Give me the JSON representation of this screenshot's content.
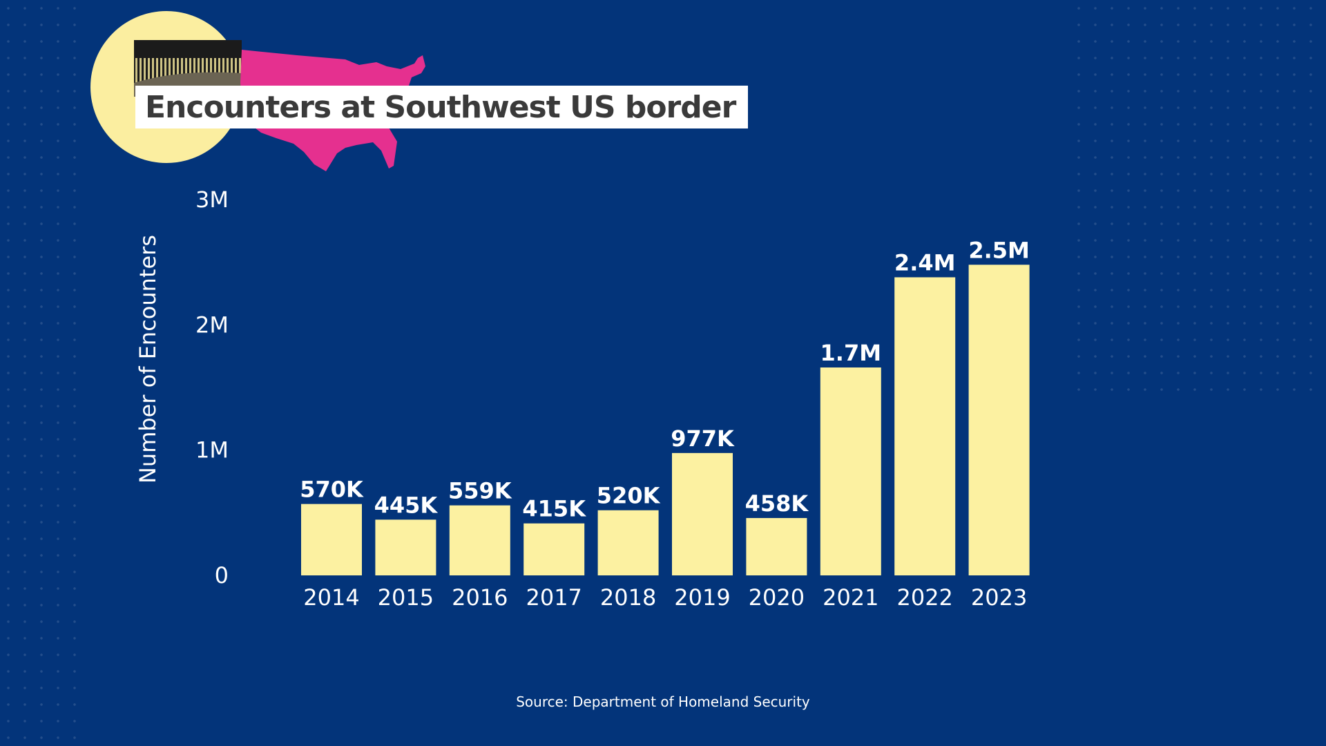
{
  "colors": {
    "background": "#03347a",
    "bar": "#fcf1a1",
    "map": "#e5308f",
    "circle": "#fbeea0",
    "title_box": "#ffffff"
  },
  "chart_data": {
    "type": "bar",
    "title": "Encounters at Southwest US border",
    "xlabel": "",
    "ylabel": "Number of Encounters",
    "categories": [
      "2014",
      "2015",
      "2016",
      "2017",
      "2018",
      "2019",
      "2020",
      "2021",
      "2022",
      "2023"
    ],
    "values": [
      570000,
      445000,
      559000,
      415000,
      520000,
      977000,
      458000,
      1660000,
      2380000,
      2480000
    ],
    "data_labels": [
      "570K",
      "445K",
      "559K",
      "415K",
      "520K",
      "977K",
      "458K",
      "1.7M",
      "2.4M",
      "2.5M"
    ],
    "ylim": [
      0,
      3000000
    ],
    "yticks": [
      {
        "value": 0,
        "label": "0"
      },
      {
        "value": 1000000,
        "label": "1M"
      },
      {
        "value": 2000000,
        "label": "2M"
      },
      {
        "value": 3000000,
        "label": "3M"
      }
    ],
    "grid": false,
    "source": "Source: Department of Homeland Security"
  }
}
